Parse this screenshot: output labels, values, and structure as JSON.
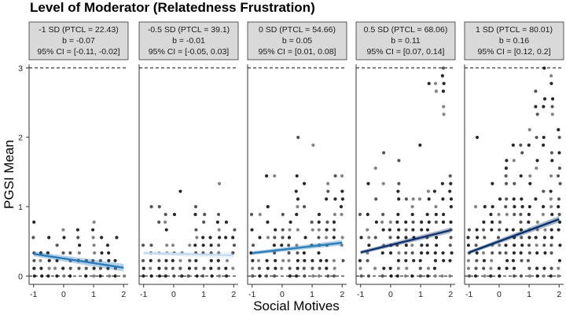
{
  "title": "Level of Moderator (Relatedness Frustration)",
  "chart_data": {
    "type": "scatter",
    "title": "Level of Moderator (Relatedness Frustration)",
    "xlabel": "Social Motives",
    "ylabel": "PGSI Mean",
    "xlim": [
      -1.15,
      2.15
    ],
    "ylim": [
      -0.12,
      3.05
    ],
    "x_ticks": [
      -1,
      0,
      1,
      2
    ],
    "x_tick_labels": [
      "-1",
      "0",
      "1",
      "2"
    ],
    "y_ticks": [
      0,
      1,
      2,
      3
    ],
    "y_tick_labels": [
      "0",
      "1",
      "2",
      "3"
    ],
    "reference_lines_y": [
      0,
      3
    ],
    "grid": false,
    "panels": [
      {
        "strip_lines": [
          "-1 SD (PTCL = 22.43)",
          "b = -0.07",
          "95% CI = [-0.11, -0.02]"
        ],
        "line_color": "#2b7bba",
        "fit": {
          "x": [
            -1,
            2
          ],
          "y": [
            0.32,
            0.12
          ]
        },
        "ci_halfwidth": [
          0.035,
          0.055
        ]
      },
      {
        "strip_lines": [
          "-0.5 SD (PTCL = 39.1)",
          "b = -0.01",
          "95% CI = [-0.05, 0.03]"
        ],
        "line_color": "#c6dbef",
        "fit": {
          "x": [
            -1,
            2
          ],
          "y": [
            0.33,
            0.3
          ]
        },
        "ci_halfwidth": [
          0.025,
          0.045
        ]
      },
      {
        "strip_lines": [
          "0 SD (PTCL = 54.66)",
          "b = 0.05",
          "95% CI = [0.01, 0.08]"
        ],
        "line_color": "#2c7fb8",
        "fit": {
          "x": [
            -1,
            2
          ],
          "y": [
            0.33,
            0.48
          ]
        },
        "ci_halfwidth": [
          0.025,
          0.04
        ]
      },
      {
        "strip_lines": [
          "0.5 SD (PTCL = 68.06)",
          "b = 0.11",
          "95% CI = [0.07, 0.14]"
        ],
        "line_color": "#12306b",
        "fit": {
          "x": [
            -1,
            2
          ],
          "y": [
            0.34,
            0.66
          ]
        },
        "ci_halfwidth": [
          0.025,
          0.04
        ]
      },
      {
        "strip_lines": [
          "1 SD (PTCL = 80.01)",
          "b = 0.16",
          "95% CI = [0.12, 0.2]"
        ],
        "line_color": "#08306b",
        "fit": {
          "x": [
            -1,
            2
          ],
          "y": [
            0.34,
            0.82
          ]
        },
        "ci_halfwidth": [
          0.025,
          0.045
        ]
      }
    ]
  }
}
